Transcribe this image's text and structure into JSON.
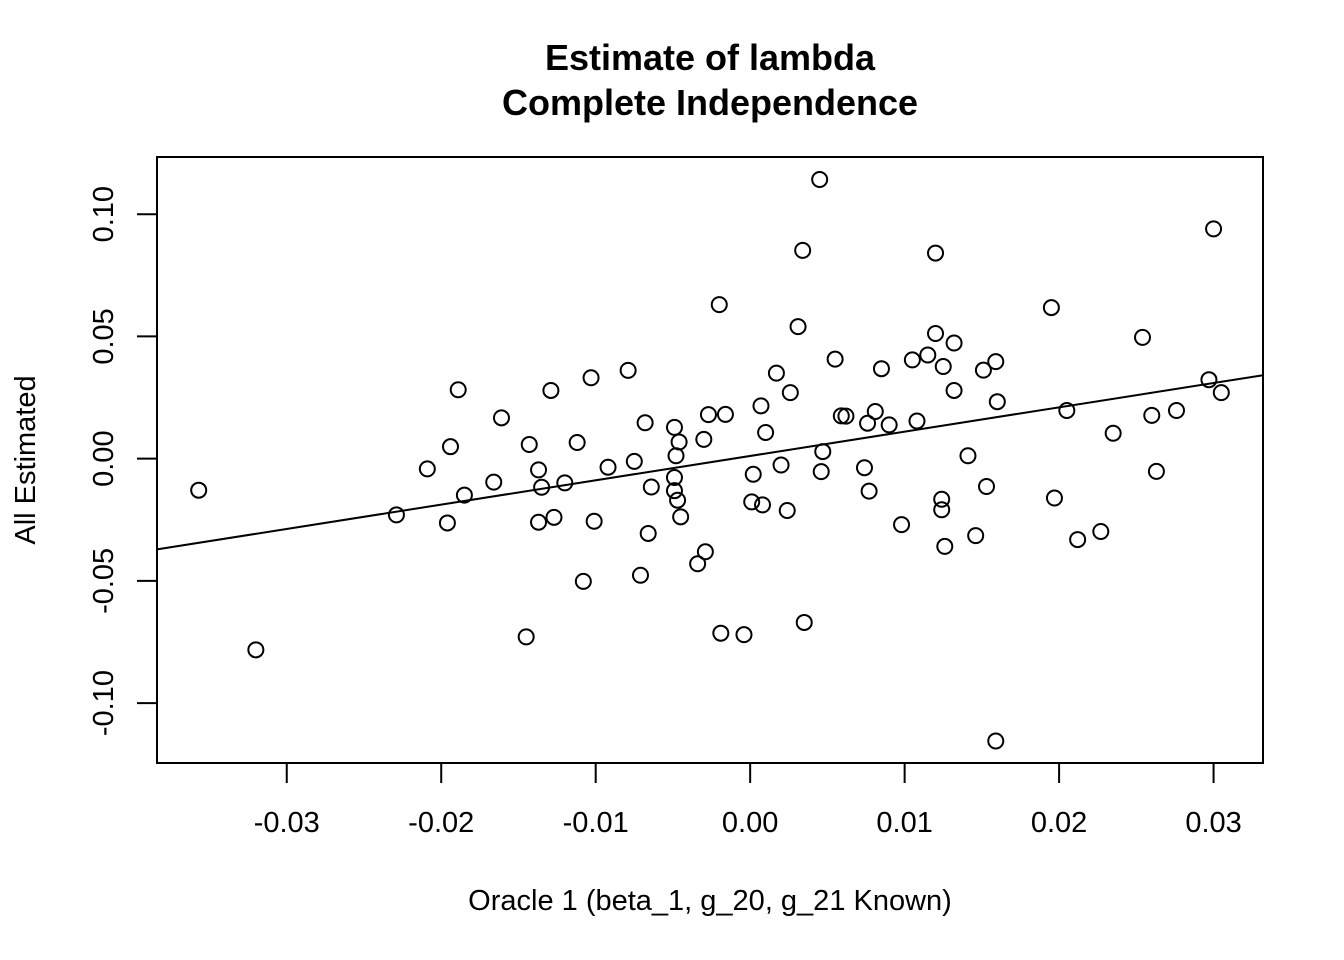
{
  "chart_data": {
    "type": "scatter",
    "title": "Estimate of lambda",
    "subtitle": "Complete Independence",
    "xlabel": "Oracle 1 (beta_1, g_20, g_21 Known)",
    "ylabel": "All Estimated",
    "xlim": [
      -0.0384,
      0.0332
    ],
    "ylim": [
      -0.1245,
      0.1234
    ],
    "x_ticks": [
      -0.03,
      -0.02,
      -0.01,
      0.0,
      0.01,
      0.02,
      0.03
    ],
    "x_tick_labels": [
      "-0.03",
      "-0.02",
      "-0.01",
      "0.00",
      "0.01",
      "0.02",
      "0.03"
    ],
    "y_ticks": [
      -0.1,
      -0.05,
      0.0,
      0.05,
      0.1
    ],
    "y_tick_labels": [
      "-0.10",
      "-0.05",
      "0.00",
      "0.05",
      "0.10"
    ],
    "grid": false,
    "legend": "none",
    "marker": "open-circle",
    "color": "#000000",
    "regression_line": {
      "intercept": 0.0011,
      "slope": 0.995
    },
    "points": [
      [
        -0.0357,
        -0.0129
      ],
      [
        -0.032,
        -0.0782
      ],
      [
        -0.0229,
        -0.023
      ],
      [
        -0.0209,
        -0.0042
      ],
      [
        -0.0196,
        -0.0263
      ],
      [
        -0.0194,
        0.0049
      ],
      [
        -0.0189,
        0.0282
      ],
      [
        -0.0185,
        -0.0149
      ],
      [
        -0.0166,
        -0.0096
      ],
      [
        -0.0161,
        0.0167
      ],
      [
        -0.0145,
        -0.0729
      ],
      [
        -0.0143,
        0.0058
      ],
      [
        -0.0137,
        -0.0046
      ],
      [
        -0.0137,
        -0.026
      ],
      [
        -0.0135,
        -0.0117
      ],
      [
        -0.0129,
        0.0279
      ],
      [
        -0.0127,
        -0.024
      ],
      [
        -0.012,
        -0.0099
      ],
      [
        -0.0112,
        0.0066
      ],
      [
        -0.0108,
        -0.0502
      ],
      [
        -0.0103,
        0.0331
      ],
      [
        -0.0101,
        -0.0256
      ],
      [
        -0.0092,
        -0.0035
      ],
      [
        -0.0079,
        0.0361
      ],
      [
        -0.0075,
        -0.0011
      ],
      [
        -0.0071,
        -0.0477
      ],
      [
        -0.0068,
        0.0147
      ],
      [
        -0.0066,
        -0.0306
      ],
      [
        -0.0064,
        -0.0116
      ],
      [
        -0.0049,
        0.0128
      ],
      [
        -0.0049,
        -0.0077
      ],
      [
        -0.0049,
        -0.0131
      ],
      [
        -0.0048,
        0.0012
      ],
      [
        -0.0047,
        -0.017
      ],
      [
        -0.0046,
        0.0068
      ],
      [
        -0.0045,
        -0.0238
      ],
      [
        -0.0034,
        -0.043
      ],
      [
        -0.003,
        0.0079
      ],
      [
        -0.0029,
        -0.0381
      ],
      [
        -0.0027,
        0.018
      ],
      [
        -0.002,
        0.063
      ],
      [
        -0.0019,
        -0.0714
      ],
      [
        -0.0016,
        0.0181
      ],
      [
        -0.0004,
        -0.072
      ],
      [
        0.0001,
        -0.0177
      ],
      [
        0.0002,
        -0.0064
      ],
      [
        0.0007,
        0.0216
      ],
      [
        0.0008,
        -0.0189
      ],
      [
        0.001,
        0.0107
      ],
      [
        0.0017,
        0.035
      ],
      [
        0.002,
        -0.0026
      ],
      [
        0.0024,
        -0.0212
      ],
      [
        0.0026,
        0.027
      ],
      [
        0.0031,
        0.054
      ],
      [
        0.0034,
        0.0852
      ],
      [
        0.0035,
        -0.067
      ],
      [
        0.0045,
        0.1142
      ],
      [
        0.0046,
        -0.0053
      ],
      [
        0.0047,
        0.0029
      ],
      [
        0.0055,
        0.0407
      ],
      [
        0.0059,
        0.0175
      ],
      [
        0.0062,
        0.0174
      ],
      [
        0.0074,
        -0.0037
      ],
      [
        0.0076,
        0.0145
      ],
      [
        0.0077,
        -0.0133
      ],
      [
        0.0081,
        0.0193
      ],
      [
        0.0085,
        0.0368
      ],
      [
        0.009,
        0.0138
      ],
      [
        0.0098,
        -0.027
      ],
      [
        0.0105,
        0.0404
      ],
      [
        0.0108,
        0.0154
      ],
      [
        0.0115,
        0.0424
      ],
      [
        0.012,
        0.0512
      ],
      [
        0.012,
        0.0841
      ],
      [
        0.0124,
        -0.0209
      ],
      [
        0.0124,
        -0.0166
      ],
      [
        0.0125,
        0.0377
      ],
      [
        0.0126,
        -0.0359
      ],
      [
        0.0132,
        0.0279
      ],
      [
        0.0132,
        0.0473
      ],
      [
        0.0141,
        0.0012
      ],
      [
        0.0146,
        -0.0315
      ],
      [
        0.0151,
        0.0362
      ],
      [
        0.0153,
        -0.0114
      ],
      [
        0.0159,
        -0.1155
      ],
      [
        0.0159,
        0.0397
      ],
      [
        0.016,
        0.0233
      ],
      [
        0.0195,
        0.0618
      ],
      [
        0.0197,
        -0.0161
      ],
      [
        0.0205,
        0.0197
      ],
      [
        0.0212,
        -0.0331
      ],
      [
        0.0227,
        -0.0298
      ],
      [
        0.0235,
        0.0104
      ],
      [
        0.0254,
        0.0496
      ],
      [
        0.026,
        0.0177
      ],
      [
        0.0263,
        -0.0052
      ],
      [
        0.0276,
        0.0197
      ],
      [
        0.0297,
        0.0323
      ],
      [
        0.03,
        0.094
      ],
      [
        0.0305,
        0.027
      ]
    ]
  }
}
